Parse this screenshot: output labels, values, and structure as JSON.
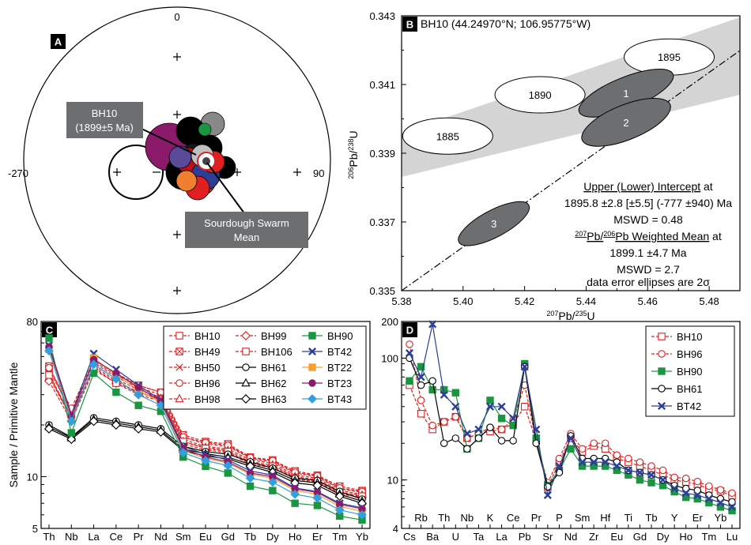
{
  "panels": {
    "A": "A",
    "B": "B",
    "C": "C",
    "D": "D"
  },
  "chart_data": [
    {
      "type": "scatter",
      "panel": "A",
      "description_kind": "equal-area stereonet",
      "tick_labels": {
        "north": "0",
        "west": "-270",
        "east": "90"
      },
      "callouts": [
        {
          "lines": [
            "BH10",
            "(1899±5 Ma)"
          ]
        },
        {
          "lines": [
            "Sourdough Swarm",
            "Mean"
          ]
        }
      ]
    },
    {
      "type": "scatter",
      "panel": "B",
      "title": "BH10 (44.24970°N; 106.95775°W)",
      "xlabel": "207Pb/235U",
      "ylabel": "206Pb/238U",
      "xlim": [
        5.38,
        5.49
      ],
      "ylim": [
        0.335,
        0.343
      ],
      "xticks": [
        "5.38",
        "5.40",
        "5.42",
        "5.44",
        "5.46",
        "5.48"
      ],
      "yticks": [
        "0.335",
        "0.337",
        "0.339",
        "0.341",
        "0.343"
      ],
      "concordia_ages": [
        {
          "label": "1885",
          "x": 5.395,
          "y": 0.3395
        },
        {
          "label": "1890",
          "x": 5.425,
          "y": 0.3407
        },
        {
          "label": "1895",
          "x": 5.467,
          "y": 0.3418
        }
      ],
      "analyses": [
        {
          "label": "1",
          "x": 5.453,
          "y": 0.34075
        },
        {
          "label": "2",
          "x": 5.453,
          "y": 0.3399
        },
        {
          "label": "3",
          "x": 5.41,
          "y": 0.33695
        }
      ],
      "annotation": {
        "intercept_title": "Upper (Lower) Intercept",
        "intercept_suffix": " at",
        "intercept_value": "1895.8 ±2.8 [±5.5] (-777 ±940) Ma",
        "mswd1": "MSWD = 0.48",
        "wm_a": "207",
        "wm_b": "Pb/",
        "wm_c": "206",
        "wm_d": "Pb Weighted Mean",
        "wm_suffix": " at",
        "wm_value": "1899.1 ±4.7 Ma",
        "mswd2": "MSWD = 2.7",
        "note": "data error ellipses are 2σ"
      }
    },
    {
      "type": "line",
      "panel": "C",
      "ylabel": "Sample / Primitive Mantle",
      "yscale": "log",
      "ylim": [
        5,
        80
      ],
      "yticks": [
        "5",
        "10",
        "80"
      ],
      "categories": [
        "Th",
        "Nb",
        "La",
        "Ce",
        "Pr",
        "Nd",
        "Sm",
        "Eu",
        "Gd",
        "Tb",
        "Dy",
        "Ho",
        "Er",
        "Tm",
        "Yb"
      ],
      "legend": "top-right",
      "series": [
        {
          "name": "BH10",
          "color": "#e02020",
          "marker": "square-open",
          "dash": true,
          "values": [
            42,
            24,
            46,
            38,
            33,
            30,
            17,
            15.5,
            15,
            12.8,
            12.2,
            10.5,
            10,
            8.5,
            8.1
          ]
        },
        {
          "name": "BH49",
          "color": "#e02020",
          "marker": "square-x",
          "dash": true,
          "values": [
            44,
            23,
            47,
            39,
            34,
            31,
            17.5,
            16,
            15.5,
            13,
            12.5,
            10.8,
            10.2,
            8.8,
            8.3
          ]
        },
        {
          "name": "BH50",
          "color": "#e02020",
          "marker": "x",
          "dash": true,
          "values": [
            40,
            22,
            45,
            37,
            32,
            29,
            16.5,
            15,
            14.5,
            12.5,
            12,
            10.2,
            9.8,
            8.3,
            7.9
          ]
        },
        {
          "name": "BH96",
          "color": "#e02020",
          "marker": "circle-open",
          "dash": true,
          "values": [
            43,
            25,
            48,
            40,
            34,
            31,
            17,
            15.8,
            15.2,
            12.9,
            12.4,
            10.6,
            10.1,
            8.6,
            8.2
          ]
        },
        {
          "name": "BH98",
          "color": "#e02020",
          "marker": "triangle-open",
          "dash": true,
          "values": [
            38,
            22,
            44,
            36,
            31,
            28.5,
            16,
            14.8,
            14.2,
            12.2,
            11.7,
            10,
            9.6,
            8.1,
            7.8
          ]
        },
        {
          "name": "BH99",
          "color": "#e02020",
          "marker": "diamond-open",
          "dash": true,
          "values": [
            36,
            21,
            42,
            35,
            30,
            27.5,
            15.5,
            14.3,
            13.8,
            11.8,
            11.3,
            9.7,
            9.3,
            7.9,
            7.6
          ]
        },
        {
          "name": "BH106",
          "color": "#e02020",
          "marker": "square-open",
          "dash": true,
          "values": [
            39,
            22,
            43,
            35,
            31,
            28,
            16,
            14.6,
            14,
            12,
            11.5,
            9.9,
            9.4,
            8,
            7.7
          ]
        },
        {
          "name": "BH61",
          "color": "#000000",
          "marker": "circle-open",
          "dash": false,
          "values": [
            20,
            17,
            22,
            21,
            20,
            19,
            15,
            14,
            13.5,
            12.2,
            11.2,
            9.8,
            9.5,
            8.2,
            7.4
          ]
        },
        {
          "name": "BH62",
          "color": "#000000",
          "marker": "triangle-open",
          "dash": false,
          "values": [
            19.5,
            16.8,
            21.5,
            20.5,
            19.5,
            18.6,
            14.5,
            13.6,
            13,
            11.8,
            10.9,
            9.5,
            9.2,
            7.9,
            7.2
          ]
        },
        {
          "name": "BH63",
          "color": "#000000",
          "marker": "diamond-open",
          "dash": false,
          "values": [
            19,
            16.5,
            21,
            20,
            19,
            18.2,
            14.2,
            13.2,
            12.7,
            11.5,
            10.6,
            9.2,
            8.9,
            7.7,
            7
          ]
        },
        {
          "name": "BH90",
          "color": "#1a9641",
          "marker": "square-filled",
          "dash": false,
          "values": [
            64,
            18,
            40,
            31,
            26,
            24,
            13,
            11.5,
            10.5,
            8.8,
            8.3,
            7,
            6.8,
            5.9,
            5.6
          ]
        },
        {
          "name": "BT42",
          "color": "#2c3e96",
          "marker": "x-bold",
          "dash": false,
          "values": [
            58,
            23,
            52,
            42,
            34,
            28,
            15,
            13.5,
            12.5,
            10.8,
            10.2,
            8.6,
            8.2,
            7,
            6.6
          ]
        },
        {
          "name": "BT22",
          "color": "#f5a030",
          "marker": "square-filled",
          "dash": false,
          "values": [
            55,
            22,
            49,
            39,
            32,
            27,
            14.2,
            12.8,
            12,
            10.3,
            9.8,
            8.3,
            7.9,
            6.7,
            6.3
          ]
        },
        {
          "name": "BT23",
          "color": "#8b1a6b",
          "marker": "circle-filled",
          "dash": false,
          "values": [
            57,
            22.5,
            48,
            40,
            33,
            27.5,
            14.6,
            13,
            12.2,
            10.5,
            10,
            8.5,
            8.1,
            6.9,
            6.5
          ]
        },
        {
          "name": "BT43",
          "color": "#30a0e0",
          "marker": "diamond-filled",
          "dash": false,
          "values": [
            54,
            21,
            45,
            37,
            30,
            26,
            13.8,
            12.4,
            11.6,
            9.8,
            9.3,
            7.9,
            7.5,
            6.4,
            6
          ]
        }
      ]
    },
    {
      "type": "line",
      "panel": "D",
      "yscale": "log",
      "ylim": [
        4,
        200
      ],
      "yticks": [
        "4",
        "10",
        "100",
        "200"
      ],
      "categories": [
        "Cs",
        "Rb",
        "Ba",
        "Th",
        "U",
        "Nb",
        "Ta",
        "K",
        "La",
        "Ce",
        "Pb",
        "Pr",
        "Sr",
        "P",
        "Nd",
        "Sm",
        "Zr",
        "Hf",
        "Eu",
        "Ti",
        "Gd",
        "Tb",
        "Dy",
        "Y",
        "Ho",
        "Er",
        "Tm",
        "Yb",
        "Lu"
      ],
      "tick_labels_bottom": [
        "Cs",
        "Ba",
        "U",
        "Ta",
        "La",
        "Pb",
        "Sr",
        "Nd",
        "Zr",
        "Eu",
        "Gd",
        "Dy",
        "Ho",
        "Tm",
        "Lu"
      ],
      "tick_labels_top": [
        "Rb",
        "Th",
        "Nb",
        "K",
        "Ce",
        "Pr",
        "P",
        "Sm",
        "Hf",
        "Ti",
        "Tb",
        "Y",
        "Er",
        "Yb"
      ],
      "legend": "top-right",
      "series": [
        {
          "name": "BH10",
          "color": "#e02020",
          "marker": "square-open",
          "dash": true,
          "values": [
            60,
            35,
            26,
            30,
            33,
            22,
            24,
            25,
            26,
            29,
            40,
            21,
            8.7,
            14,
            22,
            17,
            19,
            18,
            15,
            14,
            13,
            12,
            11,
            10,
            9.6,
            9.2,
            8.4,
            8.1,
            7.4
          ]
        },
        {
          "name": "BH96",
          "color": "#e02020",
          "marker": "circle-open",
          "dash": true,
          "values": [
            130,
            45,
            28,
            30,
            33,
            22,
            24,
            27,
            26,
            31,
            60,
            21,
            9.5,
            15,
            24,
            18,
            20,
            20,
            16,
            15,
            14,
            13,
            12,
            10.5,
            10.3,
            9.7,
            8.9,
            8.3,
            7.8
          ]
        },
        {
          "name": "BH90",
          "color": "#1a9641",
          "marker": "square-filled",
          "dash": false,
          "values": [
            65,
            85,
            55,
            55,
            52,
            18,
            22,
            45,
            32,
            28,
            90,
            22,
            9,
            12,
            18,
            13,
            13,
            13,
            12,
            11,
            10,
            9.5,
            9,
            8,
            7.2,
            7,
            6.5,
            6,
            5.6
          ]
        },
        {
          "name": "BH61",
          "color": "#000000",
          "marker": "circle-open",
          "dash": false,
          "values": [
            100,
            60,
            65,
            20,
            22,
            18,
            22,
            27,
            21,
            21,
            85,
            20,
            8.8,
            11.5,
            23,
            15,
            15,
            15,
            14,
            12,
            11.5,
            11,
            10,
            9,
            8.5,
            8.2,
            7.5,
            7,
            6.6
          ]
        },
        {
          "name": "BT42",
          "color": "#2c3e96",
          "marker": "x-bold",
          "dash": false,
          "values": [
            110,
            70,
            190,
            50,
            40,
            24,
            26,
            40,
            40,
            32,
            85,
            26,
            7.5,
            13,
            22,
            14,
            14,
            14,
            13,
            12,
            11.5,
            11,
            10,
            8.5,
            7.8,
            7.5,
            7,
            6.5,
            6
          ]
        }
      ]
    }
  ]
}
